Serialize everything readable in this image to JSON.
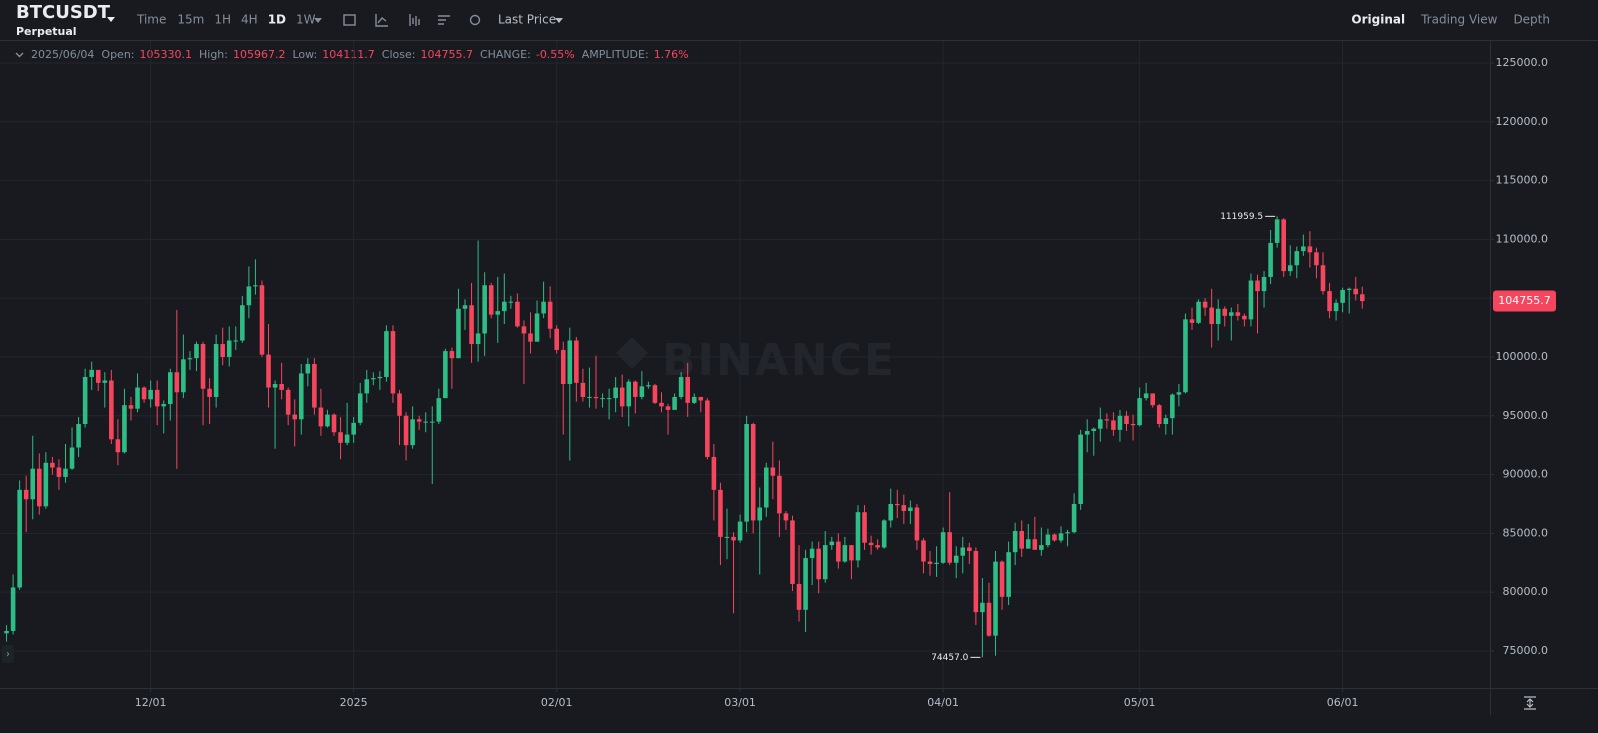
{
  "header": {
    "symbol": "BTCUSDT",
    "contract": "Perpetual",
    "intervals": [
      {
        "label": "Time",
        "active": false
      },
      {
        "label": "15m",
        "active": false
      },
      {
        "label": "1H",
        "active": false
      },
      {
        "label": "4H",
        "active": false
      },
      {
        "label": "1D",
        "active": true
      },
      {
        "label": "1W",
        "active": false
      }
    ],
    "price_type": "Last Price",
    "views": [
      {
        "label": "Original",
        "active": true
      },
      {
        "label": "Trading View",
        "active": false
      },
      {
        "label": "Depth",
        "active": false
      }
    ]
  },
  "info": {
    "date": "2025/06/04",
    "items": [
      {
        "label": "Open:",
        "value": 105330.1
      },
      {
        "label": "High:",
        "value": 105967.2
      },
      {
        "label": "Low:",
        "value": 104111.7
      },
      {
        "label": "Close:",
        "value": 104755.7
      },
      {
        "label": "CHANGE:",
        "value": -0.55,
        "value_label": "-0.55%"
      },
      {
        "label": "AMPLITUDE:",
        "value": 1.76,
        "value_label": "1.76%"
      }
    ]
  },
  "chart_data": {
    "type": "candlestick",
    "watermark": "BINANCE",
    "up_color": "#2ebd85",
    "down_color": "#f6465d",
    "grid": true,
    "xlim": [
      -1,
      226.5
    ],
    "xticks": [
      {
        "value": 22,
        "label": "12/01"
      },
      {
        "value": 53,
        "label": "2025"
      },
      {
        "value": 84,
        "label": "02/01"
      },
      {
        "value": 112,
        "label": "03/01"
      },
      {
        "value": 143,
        "label": "04/01"
      },
      {
        "value": 173,
        "label": "05/01"
      },
      {
        "value": 204,
        "label": "06/01"
      }
    ],
    "ylim": [
      71850,
      126870
    ],
    "yticks": [
      {
        "value": 75000,
        "label": "75000.0"
      },
      {
        "value": 80000,
        "label": "80000.0"
      },
      {
        "value": 85000,
        "label": "85000.0"
      },
      {
        "value": 90000,
        "label": "90000.0"
      },
      {
        "value": 95000,
        "label": "95000.0"
      },
      {
        "value": 100000,
        "label": "100000.0"
      },
      {
        "value": 105000,
        "label": "105000.0"
      },
      {
        "value": 110000,
        "label": "110000.0"
      },
      {
        "value": 115000,
        "label": "115000.0"
      },
      {
        "value": 120000,
        "label": "120000.0"
      },
      {
        "value": 125000,
        "label": "125000.0"
      }
    ],
    "high_marker": 111959.5,
    "low_marker": {
      "value": 74457,
      "label": "74457.0"
    },
    "last_price": 104755.7,
    "open": [
      76500,
      76700,
      80400,
      88700,
      87900,
      90500,
      87300,
      91000,
      90600,
      89800,
      90500,
      92300,
      94300,
      98300,
      98900,
      97800,
      98000,
      93000,
      91900,
      95900,
      95600,
      97400,
      96400,
      97200,
      95800,
      96000,
      98700,
      97000,
      99800,
      99900,
      101100,
      97300,
      96600,
      101100,
      100000,
      101400,
      101400,
      104400,
      106000,
      106100,
      100200,
      97400,
      97700,
      97200,
      95100,
      94700,
      98600,
      99400,
      95700,
      94100,
      95100,
      93600,
      92700,
      93400,
      94400,
      96900,
      98100,
      98200,
      98300,
      102200,
      96900,
      95000,
      92500,
      94700,
      94500,
      94500,
      94500,
      96500,
      100500,
      99900,
      104100,
      104400,
      101100,
      102000,
      106100,
      103600,
      103900,
      104700,
      104700,
      102600,
      102000,
      101300,
      103700,
      104700,
      102400,
      100600,
      97700,
      101400,
      97800,
      96600,
      96600,
      96500,
      96500,
      96500,
      97400,
      95800,
      97900,
      96600,
      97500,
      97600,
      96100,
      95800,
      95500,
      96600,
      98300,
      96100,
      96600,
      96300,
      91500,
      88700,
      84700,
      84700,
      84400,
      86000,
      94300,
      86100,
      87200,
      90600,
      89900,
      86700,
      86100,
      80700,
      78500,
      82900,
      83700,
      81100,
      84000,
      84300,
      82600,
      84000,
      82700,
      86800,
      84200,
      84000,
      83800,
      86100,
      87500,
      87400,
      86900,
      87200,
      84400,
      82600,
      82400,
      82500,
      85100,
      82500,
      83100,
      83800,
      83500,
      78300,
      79100,
      76300,
      82600,
      79600,
      83400,
      85200,
      83700,
      84500,
      83600,
      84000,
      84900,
      84400,
      85000,
      85100,
      87500,
      93400,
      93700,
      93900,
      94700,
      94600,
      93800,
      95000,
      94300,
      94200,
      96500,
      96900,
      95900,
      94300,
      94800,
      96800,
      97000,
      103200,
      102900,
      104700,
      104200,
      102800,
      104100,
      103500,
      103800,
      103500,
      103200,
      106500,
      105600,
      106800,
      109700,
      111700,
      107300,
      107800,
      109000,
      109400,
      108900,
      107800,
      105600,
      103900,
      104600,
      105700,
      105800,
      105330.1
    ],
    "high": [
      77200,
      81500,
      89500,
      89900,
      93300,
      91800,
      91900,
      91500,
      91300,
      92600,
      94000,
      94900,
      99000,
      99600,
      98800,
      98700,
      98900,
      94700,
      97300,
      96600,
      98600,
      97500,
      98000,
      98000,
      96300,
      99000,
      104000,
      101900,
      100500,
      101300,
      101300,
      98200,
      101900,
      102500,
      102600,
      102600,
      105200,
      107700,
      108300,
      106500,
      102800,
      98000,
      99500,
      97400,
      96400,
      99400,
      99900,
      99900,
      97300,
      95500,
      95200,
      94900,
      96100,
      94900,
      97800,
      98900,
      98700,
      98800,
      102700,
      102700,
      97200,
      95300,
      95800,
      95000,
      95300,
      95800,
      97300,
      100700,
      100800,
      105800,
      104900,
      106300,
      109900,
      107200,
      106300,
      106800,
      107100,
      105200,
      105400,
      103100,
      103800,
      104800,
      106400,
      106000,
      102700,
      101300,
      102500,
      101700,
      99000,
      99100,
      100100,
      96900,
      97300,
      98300,
      98500,
      98100,
      98000,
      98800,
      97900,
      97700,
      97000,
      96000,
      96900,
      98700,
      99500,
      96900,
      96500,
      96500,
      92600,
      89300,
      87100,
      85100,
      86600,
      95000,
      94400,
      88900,
      91000,
      92800,
      91200,
      86900,
      86500,
      84000,
      83600,
      84300,
      84300,
      85200,
      84700,
      85000,
      84700,
      84000,
      87400,
      87400,
      84800,
      84500,
      86200,
      88800,
      88700,
      88300,
      87800,
      87500,
      84600,
      83500,
      83900,
      85500,
      88500,
      83900,
      84700,
      84200,
      83800,
      81200,
      80800,
      83500,
      82700,
      84300,
      85900,
      86100,
      85800,
      86400,
      85500,
      85400,
      85000,
      85600,
      85300,
      88400,
      93800,
      94700,
      94000,
      95700,
      95200,
      95300,
      95500,
      95400,
      95100,
      97400,
      97800,
      96900,
      96000,
      95100,
      96900,
      97700,
      103700,
      104200,
      104900,
      105000,
      105800,
      104900,
      104300,
      104200,
      104500,
      103700,
      107100,
      107000,
      107300,
      110800,
      111959.5,
      111800,
      109500,
      109400,
      110400,
      110700,
      109300,
      108900,
      106300,
      104900,
      105900,
      105900,
      106800,
      105967.2
    ],
    "low": [
      75800,
      76400,
      80200,
      85100,
      86200,
      86600,
      87100,
      90000,
      88700,
      89300,
      90400,
      91500,
      94000,
      97200,
      97100,
      95700,
      92600,
      90800,
      91800,
      94600,
      95300,
      96100,
      95700,
      94200,
      93500,
      94600,
      90500,
      96500,
      98900,
      98800,
      94200,
      94300,
      95700,
      99300,
      99200,
      100600,
      101200,
      103300,
      105300,
      100000,
      95700,
      92200,
      96400,
      94200,
      92400,
      93400,
      97500,
      95100,
      93300,
      94000,
      93300,
      91300,
      92500,
      92700,
      94200,
      96100,
      97600,
      97200,
      97900,
      96100,
      92500,
      91200,
      92200,
      93800,
      93600,
      89200,
      94300,
      96500,
      97300,
      99900,
      102300,
      99500,
      99600,
      100100,
      103300,
      101200,
      102800,
      104100,
      102500,
      97700,
      100300,
      101300,
      103300,
      101600,
      100300,
      93400,
      91200,
      96200,
      96200,
      95700,
      95600,
      95700,
      94700,
      95300,
      94900,
      94100,
      95200,
      96400,
      97300,
      96000,
      95300,
      93400,
      95500,
      96400,
      94900,
      96000,
      95300,
      91300,
      86100,
      82300,
      82800,
      78200,
      84200,
      85100,
      85000,
      81500,
      86400,
      87900,
      84700,
      85300,
      80100,
      77500,
      76600,
      80600,
      79900,
      80800,
      83600,
      82000,
      82500,
      81100,
      82100,
      83600,
      83200,
      83600,
      83700,
      85500,
      86300,
      85800,
      85800,
      83600,
      81600,
      81400,
      81300,
      82400,
      82300,
      81200,
      81600,
      82400,
      77200,
      74457,
      76200,
      74600,
      78500,
      78900,
      82300,
      83000,
      83700,
      83600,
      83100,
      83800,
      84300,
      84200,
      83900,
      85000,
      87000,
      91900,
      91600,
      92800,
      93900,
      93300,
      92800,
      93700,
      92900,
      94100,
      96300,
      95700,
      94000,
      93400,
      93400,
      95800,
      96900,
      102300,
      102800,
      103500,
      100800,
      101400,
      102600,
      101400,
      103100,
      102600,
      102600,
      102000,
      104200,
      106200,
      109300,
      106800,
      106900,
      106700,
      108600,
      107600,
      106700,
      105300,
      103300,
      103100,
      103800,
      103700,
      104800,
      104111.7
    ],
    "close": [
      76700,
      80400,
      88700,
      87900,
      90500,
      87300,
      91000,
      90600,
      89800,
      90500,
      92300,
      94300,
      98300,
      98900,
      97800,
      98000,
      93000,
      91900,
      95900,
      95600,
      97400,
      96400,
      97200,
      95800,
      96000,
      98700,
      97000,
      99800,
      99900,
      101100,
      97300,
      96600,
      101100,
      100000,
      101400,
      101400,
      104400,
      106000,
      106100,
      100200,
      97400,
      97700,
      97200,
      95100,
      94700,
      98600,
      99400,
      95700,
      94100,
      95100,
      93600,
      92700,
      93400,
      94400,
      96900,
      98100,
      98200,
      98300,
      102200,
      96900,
      95000,
      92500,
      94700,
      94500,
      94500,
      94500,
      96500,
      100500,
      99900,
      104100,
      104400,
      101100,
      102000,
      106100,
      103600,
      103900,
      104700,
      104700,
      102600,
      102000,
      101300,
      103700,
      104700,
      102400,
      100600,
      97700,
      101400,
      97800,
      96600,
      96600,
      96500,
      96500,
      96500,
      97400,
      95800,
      97900,
      96600,
      97500,
      97600,
      96100,
      95800,
      95500,
      96600,
      98300,
      96100,
      96600,
      96300,
      91500,
      88700,
      84700,
      84700,
      84400,
      86000,
      94300,
      86100,
      87200,
      90600,
      89900,
      86700,
      86100,
      80700,
      78500,
      82900,
      83700,
      81100,
      84000,
      84300,
      82600,
      84000,
      82700,
      86800,
      84200,
      84000,
      83800,
      86100,
      87500,
      87400,
      86900,
      87200,
      84400,
      82600,
      82400,
      82500,
      85100,
      82500,
      83100,
      83800,
      83500,
      78300,
      79100,
      76300,
      82600,
      79600,
      83400,
      85200,
      83700,
      84500,
      83600,
      84000,
      84900,
      84400,
      85000,
      85100,
      87500,
      93400,
      93700,
      93900,
      94700,
      94600,
      93800,
      95000,
      94300,
      94200,
      96500,
      96900,
      95900,
      94300,
      94800,
      96800,
      97000,
      103200,
      102900,
      104700,
      104200,
      102800,
      104100,
      103500,
      103800,
      103500,
      103200,
      106500,
      105600,
      106800,
      109700,
      111700,
      107300,
      107800,
      109000,
      109400,
      108900,
      107800,
      105600,
      103900,
      104600,
      105700,
      105800,
      105330.1,
      104755.7
    ]
  }
}
